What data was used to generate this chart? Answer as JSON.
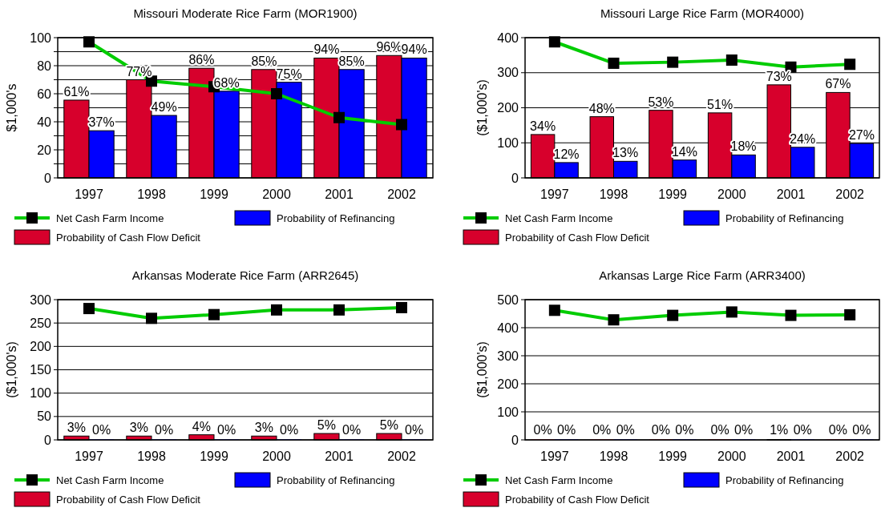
{
  "chart_data": [
    {
      "type": "bar",
      "title": "Missouri Moderate Rice Farm (MOR1900)",
      "ylabel": "$1,000's",
      "categories": [
        "1997",
        "1998",
        "1999",
        "2000",
        "2001",
        "2002"
      ],
      "ylim": [
        0,
        100
      ],
      "yticks": [
        0,
        {
          "value": 10,
          "label": null
        },
        20,
        {
          "value": 30,
          "label": null
        },
        40,
        {
          "value": 50,
          "label": null
        },
        60,
        {
          "value": 70,
          "label": null
        },
        80,
        {
          "value": 90,
          "label": null
        },
        100
      ],
      "grid": "y",
      "legend": "bottom",
      "marker": "square",
      "series": [
        {
          "name": "Probability of Cash Flow Deficit",
          "axis": "y2",
          "color": "#d7002c",
          "values": [
            61,
            77,
            86,
            85,
            94,
            96
          ],
          "value_labels": [
            "61%",
            "77%",
            "86%",
            "85%",
            "94%",
            "96%"
          ]
        },
        {
          "name": "Probability of Refinancing",
          "axis": "y2",
          "color": "#0000ff",
          "values": [
            37,
            49,
            68,
            75,
            85,
            94
          ],
          "value_labels": [
            "37%",
            "49%",
            "68%",
            "75%",
            "85%",
            "94%"
          ]
        },
        {
          "name": "Net Cash Farm Income",
          "type": "line",
          "color": "#00cc00",
          "values": [
            97,
            69,
            65,
            60,
            43,
            38
          ]
        }
      ]
    },
    {
      "type": "bar",
      "title": "Missouri Large Rice Farm (MOR4000)",
      "ylabel": "($1,000's)",
      "categories": [
        "1997",
        "1998",
        "1999",
        "2000",
        "2001",
        "2002"
      ],
      "ylim": [
        0,
        400
      ],
      "yticks": [
        0,
        100,
        200,
        300,
        400
      ],
      "grid": "y",
      "legend": "bottom",
      "marker": "square",
      "series": [
        {
          "name": "Probability of Cash Flow Deficit",
          "axis": "y2",
          "color": "#d7002c",
          "values": [
            34,
            48,
            53,
            51,
            73,
            67
          ],
          "value_labels": [
            "34%",
            "48%",
            "53%",
            "51%",
            "73%",
            "67%"
          ]
        },
        {
          "name": "Probability of Refinancing",
          "axis": "y2",
          "color": "#0000ff",
          "values": [
            12,
            13,
            14,
            18,
            24,
            27
          ],
          "value_labels": [
            "12%",
            "13%",
            "14%",
            "18%",
            "24%",
            "27%"
          ]
        },
        {
          "name": "Net Cash Farm Income",
          "type": "line",
          "color": "#00cc00",
          "values": [
            388,
            327,
            330,
            336,
            316,
            324
          ]
        }
      ]
    },
    {
      "type": "bar",
      "title": "Arkansas  Moderate Rice Farm (ARR2645)",
      "ylabel": "($1,000's)",
      "categories": [
        "1997",
        "1998",
        "1999",
        "2000",
        "2001",
        "2002"
      ],
      "ylim": [
        0,
        300
      ],
      "yticks": [
        0,
        50,
        100,
        150,
        200,
        250,
        300
      ],
      "grid": "y",
      "legend": "bottom",
      "marker": "square",
      "series": [
        {
          "name": "Probability of Cash Flow Deficit",
          "axis": "y2",
          "color": "#d7002c",
          "values": [
            3,
            3,
            4,
            3,
            5,
            5
          ],
          "value_labels": [
            "3%",
            "3%",
            "4%",
            "3%",
            "5%",
            "5%"
          ]
        },
        {
          "name": "Probability of Refinancing",
          "axis": "y2",
          "color": "#0000ff",
          "values": [
            0,
            0,
            0,
            0,
            0,
            0
          ],
          "value_labels": [
            "0%",
            "0%",
            "0%",
            "0%",
            "0%",
            "0%"
          ]
        },
        {
          "name": "Net Cash Farm Income",
          "type": "line",
          "color": "#00cc00",
          "values": [
            281,
            260,
            268,
            278,
            278,
            283
          ]
        }
      ]
    },
    {
      "type": "bar",
      "title": "Arkansas Large Rice Farm (ARR3400)",
      "ylabel": "($1,000's)",
      "categories": [
        "1997",
        "1998",
        "1999",
        "2000",
        "2001",
        "2002"
      ],
      "ylim": [
        0,
        500
      ],
      "yticks": [
        0,
        100,
        200,
        300,
        400,
        500
      ],
      "grid": "y",
      "legend": "bottom",
      "marker": "square",
      "series": [
        {
          "name": "Probability of Cash Flow Deficit",
          "color": "#d7002c",
          "values": [
            0,
            0,
            0,
            0,
            1,
            0
          ],
          "value_labels": [
            "0%",
            "0%",
            "0%",
            "0%",
            "1%",
            "0%"
          ]
        },
        {
          "name": "Probability of Refinancing",
          "color": "#0000ff",
          "values": [
            0,
            0,
            0,
            0,
            0,
            0
          ],
          "value_labels": [
            "0%",
            "0%",
            "0%",
            "0%",
            "0%",
            "0%"
          ]
        },
        {
          "name": "Net Cash Farm Income",
          "type": "line",
          "color": "#00cc00",
          "values": [
            462,
            428,
            444,
            456,
            444,
            446
          ]
        }
      ]
    }
  ]
}
